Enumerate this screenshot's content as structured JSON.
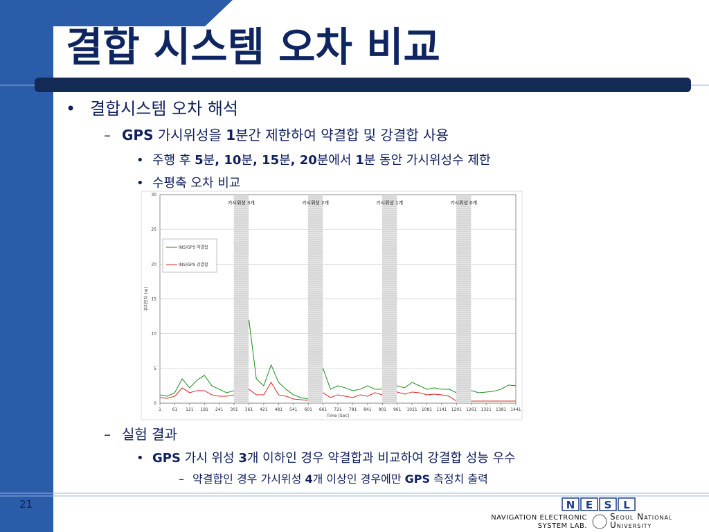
{
  "title": "결합 시스템 오차 비교",
  "bullets": [
    {
      "level": 1,
      "runs": [
        {
          "text": "결합시스템 오차 해석",
          "bold": false
        }
      ]
    },
    {
      "level": 2,
      "runs": [
        {
          "text": "GPS",
          "bold": true
        },
        {
          "text": " 가시위성을 ",
          "bold": false
        },
        {
          "text": "1",
          "bold": true
        },
        {
          "text": "분간 제한하여 약결합 및 강결합 사용",
          "bold": false
        }
      ]
    },
    {
      "level": 3,
      "runs": [
        {
          "text": "주행 후 ",
          "bold": false
        },
        {
          "text": "5",
          "bold": true
        },
        {
          "text": "분",
          "bold": false
        },
        {
          "text": ", 10",
          "bold": true
        },
        {
          "text": "분",
          "bold": false
        },
        {
          "text": ", 15",
          "bold": true
        },
        {
          "text": "분",
          "bold": false
        },
        {
          "text": ", 20",
          "bold": true
        },
        {
          "text": "분에서 ",
          "bold": false
        },
        {
          "text": "1",
          "bold": true
        },
        {
          "text": "분 동안 가시위성수 제한",
          "bold": false
        }
      ]
    },
    {
      "level": 3,
      "runs": [
        {
          "text": "수평축 오차 비교",
          "bold": false
        }
      ]
    }
  ],
  "bullets_after": [
    {
      "level": 2,
      "runs": [
        {
          "text": "실험 결과",
          "bold": false
        }
      ]
    },
    {
      "level": 3,
      "runs": [
        {
          "text": "GPS",
          "bold": true
        },
        {
          "text": " 가시 위성 ",
          "bold": false
        },
        {
          "text": "3",
          "bold": true
        },
        {
          "text": "개 이하인 경우 약결합과 비교하여 강결합 성능 우수",
          "bold": false
        }
      ]
    },
    {
      "level": 4,
      "runs": [
        {
          "text": "약결합인 경우 가시위성 ",
          "bold": false
        },
        {
          "text": "4",
          "bold": true
        },
        {
          "text": "개 이상인 경우에만 ",
          "bold": false
        },
        {
          "text": "GPS",
          "bold": true
        },
        {
          "text": " 측정치 출력",
          "bold": false
        }
      ]
    }
  ],
  "page_number": "21",
  "footer": {
    "logo_letters": [
      "N",
      "E",
      "S",
      "L"
    ],
    "lab": [
      "NAVIGATION ELECTRONIC",
      "SYSTEM LAB."
    ],
    "university": [
      "Seoul National",
      "University"
    ]
  },
  "chart_data": {
    "type": "line",
    "xlabel": "Time [Sec]",
    "ylabel": "위치오차 (m)",
    "x": [
      1,
      31,
      61,
      91,
      121,
      151,
      181,
      211,
      241,
      271,
      301,
      331,
      361,
      391,
      421,
      451,
      481,
      511,
      541,
      571,
      601,
      631,
      661,
      691,
      721,
      751,
      781,
      811,
      841,
      871,
      901,
      931,
      961,
      991,
      1021,
      1051,
      1081,
      1111,
      1141,
      1171,
      1201,
      1231,
      1261,
      1291,
      1321,
      1351,
      1381,
      1411,
      1441
    ],
    "series": [
      {
        "name": "INS/GPS 약결합",
        "color": "#1a8a1a",
        "values": [
          1.2,
          1.0,
          1.5,
          3.5,
          2.2,
          3.3,
          4.0,
          2.5,
          2.0,
          1.5,
          1.8,
          3.0,
          12.0,
          3.5,
          2.5,
          5.5,
          3.0,
          2.0,
          1.2,
          0.8,
          0.6,
          1.0,
          5.0,
          2.0,
          2.5,
          2.2,
          1.8,
          2.0,
          2.5,
          2.0,
          2.0,
          1.5,
          2.5,
          2.2,
          3.0,
          2.5,
          2.0,
          2.2,
          2.0,
          2.0,
          1.5,
          1.5,
          1.8,
          1.5,
          1.6,
          1.7,
          2.0,
          2.6,
          2.5
        ]
      },
      {
        "name": "INS/GPS 강결합",
        "color": "#e02020",
        "values": [
          0.8,
          0.7,
          1.0,
          2.2,
          1.5,
          1.8,
          1.8,
          1.2,
          1.0,
          1.0,
          1.2,
          1.5,
          2.0,
          1.2,
          1.2,
          3.0,
          1.2,
          1.0,
          0.6,
          0.5,
          0.4,
          0.6,
          1.5,
          0.8,
          1.2,
          1.0,
          0.8,
          1.2,
          1.0,
          1.5,
          1.2,
          0.8,
          1.6,
          1.3,
          1.6,
          1.5,
          1.2,
          1.3,
          1.2,
          1.0,
          0.3,
          0.3,
          0.3,
          0.3,
          0.3,
          0.3,
          0.3,
          0.3,
          0.3
        ]
      }
    ],
    "outages": [
      {
        "label": "가시위성 3개",
        "start": 300,
        "end": 360
      },
      {
        "label": "가시위성 2개",
        "start": 600,
        "end": 660
      },
      {
        "label": "가시위성 1개",
        "start": 900,
        "end": 960
      },
      {
        "label": "가시위성 0개",
        "start": 1200,
        "end": 1260
      }
    ],
    "xlim": [
      1,
      1441
    ],
    "xticks": [
      1,
      61,
      121,
      181,
      241,
      301,
      361,
      421,
      481,
      541,
      601,
      661,
      721,
      781,
      841,
      901,
      961,
      1021,
      1081,
      1141,
      1201,
      1261,
      1321,
      1381,
      1441
    ],
    "ylim": [
      0,
      30
    ],
    "yticks": [
      0,
      5,
      10,
      15,
      20,
      25,
      30
    ],
    "grid": true
  }
}
